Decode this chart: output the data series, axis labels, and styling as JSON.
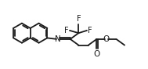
{
  "bg_color": "#ffffff",
  "line_color": "#1a1a1a",
  "line_width": 1.3,
  "figsize": [
    1.89,
    0.88
  ],
  "dpi": 100,
  "xlim": [
    -0.5,
    9.8
  ],
  "ylim": [
    -2.2,
    2.2
  ]
}
